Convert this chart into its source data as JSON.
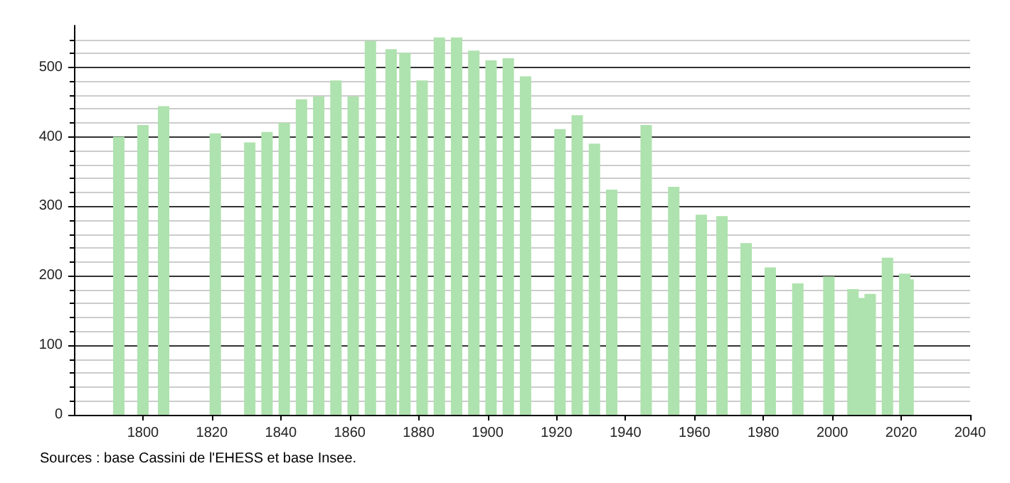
{
  "chart_data": {
    "type": "bar",
    "x": [
      1793,
      1800,
      1806,
      1821,
      1831,
      1836,
      1841,
      1846,
      1851,
      1856,
      1861,
      1866,
      1872,
      1876,
      1881,
      1886,
      1891,
      1896,
      1901,
      1906,
      1911,
      1921,
      1926,
      1931,
      1936,
      1946,
      1954,
      1962,
      1968,
      1975,
      1982,
      1990,
      1999,
      2006,
      2008,
      2011,
      2016,
      2021,
      2022
    ],
    "values": [
      400,
      417,
      444,
      405,
      392,
      407,
      420,
      454,
      458,
      481,
      458,
      538,
      526,
      521,
      481,
      543,
      543,
      524,
      510,
      513,
      487,
      411,
      431,
      390,
      324,
      417,
      328,
      288,
      286,
      247,
      212,
      189,
      199,
      181,
      168,
      174,
      226,
      203,
      195
    ],
    "color": "#aee2ae",
    "xlim": [
      1780,
      2040
    ],
    "xticks": [
      1800,
      1820,
      1840,
      1860,
      1880,
      1900,
      1920,
      1940,
      1960,
      1980,
      2000,
      2020,
      2040
    ],
    "ylim": [
      0,
      560
    ],
    "yticks": [
      0,
      100,
      200,
      300,
      400,
      500
    ],
    "grid": "y",
    "annotations": [
      "Sources : base Cassini de l'EHESS et base Insee."
    ]
  }
}
